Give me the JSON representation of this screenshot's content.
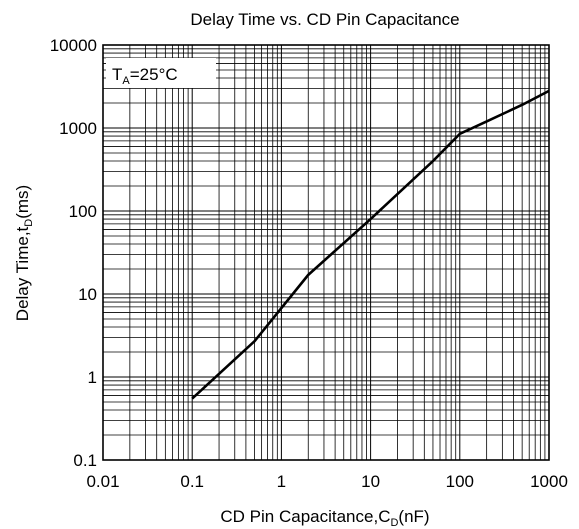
{
  "chart_data": {
    "type": "line",
    "title": "Delay Time vs. CD Pin Capacitance",
    "xlabel": {
      "main": "CD Pin Capacitance,C",
      "sub": "D",
      "tail": "(nF)"
    },
    "ylabel": {
      "main": "Delay Time,t",
      "sub": "D",
      "tail": "(ms)"
    },
    "annotation": {
      "main": "T",
      "sub": "A",
      "tail": "=25°C"
    },
    "x_scale": "log",
    "y_scale": "log",
    "xlim": [
      0.01,
      1000
    ],
    "ylim": [
      0.1,
      10000
    ],
    "grid": true,
    "x_ticks": [
      {
        "v": 0.01,
        "label": "0.01"
      },
      {
        "v": 0.1,
        "label": "0.1"
      },
      {
        "v": 1,
        "label": "1"
      },
      {
        "v": 10,
        "label": "10"
      },
      {
        "v": 100,
        "label": "100"
      },
      {
        "v": 1000,
        "label": "1000"
      }
    ],
    "y_ticks": [
      {
        "v": 0.1,
        "label": "0.1"
      },
      {
        "v": 1,
        "label": "1"
      },
      {
        "v": 10,
        "label": "10"
      },
      {
        "v": 100,
        "label": "100"
      },
      {
        "v": 1000,
        "label": "1000"
      },
      {
        "v": 10000,
        "label": "10000"
      }
    ],
    "series": [
      {
        "color": "#000000",
        "points": [
          {
            "x": 0.1,
            "y": 0.55
          },
          {
            "x": 0.5,
            "y": 2.7
          },
          {
            "x": 2,
            "y": 17
          },
          {
            "x": 10,
            "y": 80
          },
          {
            "x": 50,
            "y": 400
          },
          {
            "x": 100,
            "y": 850
          },
          {
            "x": 200,
            "y": 1200
          },
          {
            "x": 500,
            "y": 1900
          },
          {
            "x": 1000,
            "y": 2800
          }
        ]
      }
    ]
  }
}
